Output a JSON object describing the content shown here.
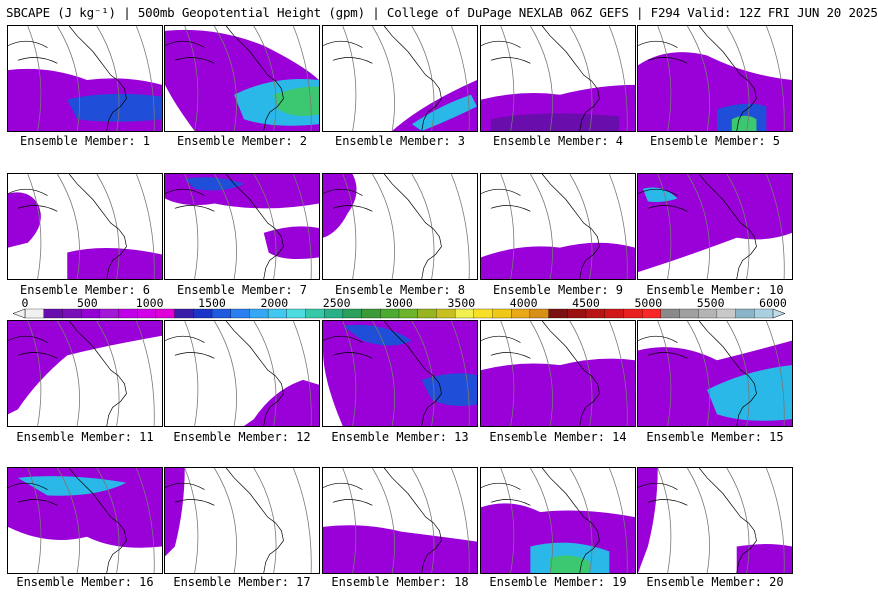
{
  "header": {
    "title": "SBCAPE (J kg⁻¹) | 500mb Geopotential Height (gpm) | College of DuPage NEXLAB 06Z GEFS | F294 Valid: 12Z FRI JUN 20 2025"
  },
  "colorbar": {
    "tick_labels": [
      "0",
      "500",
      "1000",
      "1500",
      "2000",
      "2500",
      "3000",
      "3500",
      "4000",
      "4500",
      "5000",
      "5500",
      "6000"
    ],
    "colors": [
      "#f0f0f0",
      "#6a0dad",
      "#7a10b8",
      "#9400d3",
      "#a21ad8",
      "#c000e8",
      "#d200e6",
      "#e000d8",
      "#3a1fa8",
      "#1a35c8",
      "#1f5ae0",
      "#2a80f0",
      "#34a8f5",
      "#40c8f0",
      "#4cdce0",
      "#36c8a8",
      "#2ab088",
      "#2aa05c",
      "#3c9a38",
      "#4caa30",
      "#6eb42a",
      "#98b420",
      "#c8c020",
      "#f0f050",
      "#f8e028",
      "#f0c818",
      "#e8a818",
      "#d89018",
      "#7a1010",
      "#9a1010",
      "#b81414",
      "#d01818",
      "#e82020",
      "#f82828",
      "#8a8a8a",
      "#a0a0a0",
      "#b4b4b4",
      "#c8c8c8",
      "#8ab4c8",
      "#a8d0e0"
    ]
  },
  "panels": [
    {
      "label": "Ensemble Member: 1"
    },
    {
      "label": "Ensemble Member: 2"
    },
    {
      "label": "Ensemble Member: 3"
    },
    {
      "label": "Ensemble Member: 4"
    },
    {
      "label": "Ensemble Member: 5"
    },
    {
      "label": "Ensemble Member: 6"
    },
    {
      "label": "Ensemble Member: 7"
    },
    {
      "label": "Ensemble Member: 8"
    },
    {
      "label": "Ensemble Member: 9"
    },
    {
      "label": "Ensemble Member: 10"
    },
    {
      "label": "Ensemble Member: 11"
    },
    {
      "label": "Ensemble Member: 12"
    },
    {
      "label": "Ensemble Member: 13"
    },
    {
      "label": "Ensemble Member: 14"
    },
    {
      "label": "Ensemble Member: 15"
    },
    {
      "label": "Ensemble Member: 16"
    },
    {
      "label": "Ensemble Member: 17"
    },
    {
      "label": "Ensemble Member: 18"
    },
    {
      "label": "Ensemble Member: 19"
    },
    {
      "label": "Ensemble Member: 20"
    }
  ]
}
